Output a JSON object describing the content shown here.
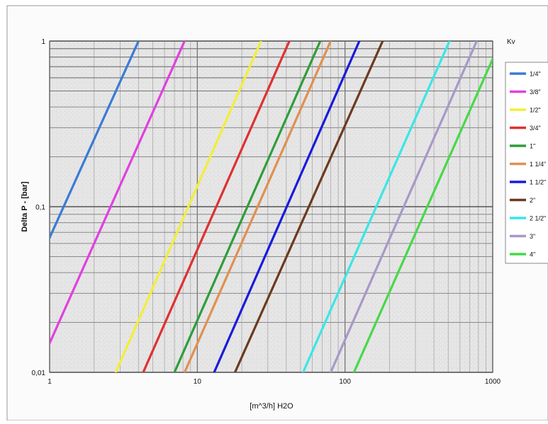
{
  "chart_data": {
    "type": "line",
    "xscale": "log",
    "yscale": "log",
    "xlim": [
      1,
      1000
    ],
    "ylim": [
      0.01,
      1
    ],
    "x_ticks": [
      "1",
      "10",
      "100",
      "1000"
    ],
    "y_ticks": [
      "1",
      "0,1",
      "0,01"
    ],
    "xlabel": "[m^3/h] H2O",
    "ylabel": "Delta P - [bar]",
    "legend_title": "Kv",
    "legend_position": "right",
    "grid": true,
    "series": [
      {
        "name": "1/4\"",
        "color": "#3a7bd5",
        "x": [
          1,
          4.0
        ],
        "y": [
          0.065,
          1
        ]
      },
      {
        "name": "3/8\"",
        "color": "#e040e0",
        "x": [
          1,
          8.2
        ],
        "y": [
          0.015,
          1
        ]
      },
      {
        "name": "1/2\"",
        "color": "#f2ee3a",
        "x": [
          2.8,
          27
        ],
        "y": [
          0.01,
          1
        ]
      },
      {
        "name": "3/4\"",
        "color": "#e03030",
        "x": [
          4.3,
          42
        ],
        "y": [
          0.01,
          1
        ]
      },
      {
        "name": "1\"",
        "color": "#2e9e3a",
        "x": [
          7.0,
          68
        ],
        "y": [
          0.01,
          1
        ]
      },
      {
        "name": "1 1/4\"",
        "color": "#e09050",
        "x": [
          8.2,
          80
        ],
        "y": [
          0.01,
          1
        ]
      },
      {
        "name": "1 1/2\"",
        "color": "#1a1ae0",
        "x": [
          13,
          125
        ],
        "y": [
          0.01,
          1
        ]
      },
      {
        "name": "2\"",
        "color": "#6b3a1f",
        "x": [
          18,
          180
        ],
        "y": [
          0.01,
          1
        ]
      },
      {
        "name": "2 1/2\"",
        "color": "#3ae6e6",
        "x": [
          52,
          510
        ],
        "y": [
          0.01,
          1
        ]
      },
      {
        "name": "3\"",
        "color": "#a898c8",
        "x": [
          80,
          780
        ],
        "y": [
          0.01,
          1
        ]
      },
      {
        "name": "4\"",
        "color": "#48d848",
        "x": [
          115,
          1000
        ],
        "y": [
          0.01,
          0.78
        ]
      }
    ]
  }
}
